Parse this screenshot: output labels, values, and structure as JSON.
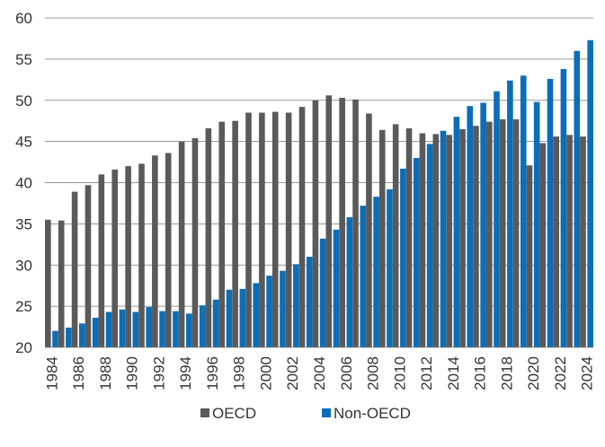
{
  "chart_data": {
    "type": "bar",
    "title": "",
    "xlabel": "",
    "ylabel": "",
    "ylim": [
      20,
      60
    ],
    "yticks": [
      20,
      25,
      30,
      35,
      40,
      45,
      50,
      55,
      60
    ],
    "grid": true,
    "legend_position": "bottom",
    "categories": [
      "1984",
      "1985",
      "1986",
      "1987",
      "1988",
      "1989",
      "1990",
      "1991",
      "1992",
      "1993",
      "1994",
      "1995",
      "1996",
      "1997",
      "1998",
      "1999",
      "2000",
      "2001",
      "2002",
      "2003",
      "2004",
      "2005",
      "2006",
      "2007",
      "2008",
      "2009",
      "2010",
      "2011",
      "2012",
      "2013",
      "2014",
      "2015",
      "2016",
      "2017",
      "2018",
      "2019",
      "2020",
      "2021",
      "2022",
      "2023",
      "2024"
    ],
    "xtick_labels": [
      "1984",
      "1986",
      "1988",
      "1990",
      "1992",
      "1994",
      "1996",
      "1998",
      "2000",
      "2002",
      "2004",
      "2006",
      "2008",
      "2010",
      "2012",
      "2014",
      "2016",
      "2018",
      "2020",
      "2022",
      "2024"
    ],
    "series": [
      {
        "name": "OECD",
        "color": "#5a5a5a",
        "values": [
          35.5,
          35.4,
          38.9,
          39.7,
          41.0,
          41.6,
          42.0,
          42.3,
          43.3,
          43.6,
          45.0,
          45.4,
          46.6,
          47.4,
          47.5,
          48.5,
          48.5,
          48.6,
          48.5,
          49.2,
          50.0,
          50.6,
          50.3,
          50.1,
          48.4,
          46.4,
          47.1,
          46.6,
          46.0,
          45.9,
          45.8,
          46.5,
          46.9,
          47.4,
          47.7,
          47.7,
          42.1,
          44.8,
          45.6,
          45.8,
          45.6
        ]
      },
      {
        "name": "Non-OECD",
        "color": "#0b6eb8",
        "values": [
          22.0,
          22.4,
          22.9,
          23.6,
          24.3,
          24.6,
          24.3,
          24.9,
          24.4,
          24.4,
          24.1,
          25.1,
          25.8,
          27.0,
          27.1,
          27.8,
          28.7,
          29.3,
          30.1,
          31.0,
          33.2,
          34.3,
          35.8,
          37.2,
          38.3,
          39.2,
          41.7,
          43.0,
          44.7,
          46.3,
          48.0,
          49.3,
          49.7,
          51.1,
          52.4,
          53.0,
          49.8,
          52.6,
          53.8,
          56.0,
          57.3
        ]
      }
    ]
  }
}
